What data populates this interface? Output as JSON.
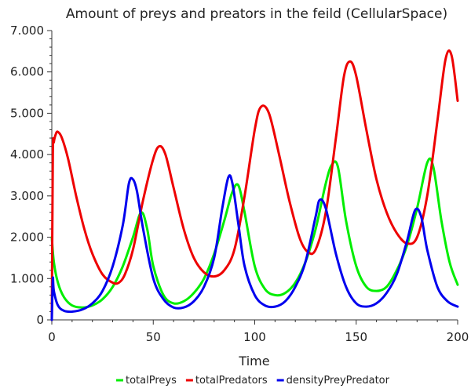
{
  "chart_data": {
    "type": "line",
    "title": "Amount of preys and preators in the feild (CellularSpace)",
    "xlabel": "Time",
    "ylabel": "",
    "xlim": [
      0,
      200
    ],
    "ylim": [
      0,
      7000
    ],
    "x_ticks": [
      0,
      50,
      100,
      150,
      200
    ],
    "x_tick_labels": [
      "0",
      "50",
      "100",
      "150",
      "200"
    ],
    "y_ticks": [
      0,
      1000,
      2000,
      3000,
      4000,
      5000,
      6000,
      7000
    ],
    "y_tick_labels": [
      "0",
      "1.000",
      "2.000",
      "3.000",
      "4.000",
      "5.000",
      "6.000",
      "7.000"
    ],
    "legend_position": "bottom",
    "series": [
      {
        "name": "totalPreys",
        "color": "#00ee00",
        "x": [
          0,
          1,
          3,
          6,
          10,
          15,
          20,
          25,
          30,
          35,
          40,
          44,
          47,
          50,
          55,
          60,
          65,
          70,
          75,
          80,
          85,
          89,
          92,
          95,
          100,
          105,
          110,
          115,
          120,
          125,
          130,
          135,
          138,
          141,
          145,
          150,
          155,
          160,
          165,
          170,
          175,
          180,
          185,
          188,
          192,
          196,
          200
        ],
        "y": [
          2000,
          1400,
          900,
          550,
          350,
          300,
          350,
          500,
          800,
          1300,
          2000,
          2600,
          2200,
          1300,
          600,
          400,
          450,
          650,
          1000,
          1600,
          2400,
          3100,
          3250,
          2600,
          1300,
          750,
          600,
          650,
          900,
          1400,
          2200,
          3300,
          3750,
          3700,
          2400,
          1300,
          800,
          700,
          800,
          1200,
          1800,
          2700,
          3800,
          3700,
          2400,
          1400,
          850
        ]
      },
      {
        "name": "totalPredators",
        "color": "#ee0000",
        "x": [
          0,
          0.5,
          1,
          2,
          3,
          5,
          8,
          12,
          16,
          20,
          25,
          30,
          33,
          36,
          40,
          45,
          50,
          53,
          56,
          60,
          65,
          70,
          75,
          80,
          85,
          90,
          95,
          100,
          103,
          107,
          112,
          117,
          122,
          126,
          130,
          135,
          140,
          144,
          147,
          150,
          155,
          160,
          165,
          170,
          175,
          180,
          185,
          190,
          194,
          197,
          200
        ],
        "y": [
          0,
          4000,
          4300,
          4500,
          4550,
          4400,
          3900,
          3000,
          2200,
          1600,
          1100,
          900,
          900,
          1100,
          1700,
          2900,
          3900,
          4200,
          4000,
          3200,
          2200,
          1500,
          1150,
          1050,
          1200,
          1700,
          3000,
          4600,
          5150,
          5000,
          4000,
          2900,
          2000,
          1650,
          1700,
          2600,
          4400,
          5900,
          6250,
          5900,
          4600,
          3400,
          2600,
          2100,
          1850,
          2000,
          3000,
          4800,
          6300,
          6400,
          5300
        ]
      },
      {
        "name": "densityPreyPredator",
        "color": "#0000ee",
        "x": [
          0,
          0.5,
          1,
          3,
          6,
          10,
          15,
          20,
          25,
          30,
          35,
          38,
          40,
          42,
          45,
          50,
          55,
          60,
          65,
          70,
          75,
          80,
          84,
          87,
          89,
          92,
          95,
          100,
          105,
          110,
          115,
          120,
          125,
          130,
          132,
          135,
          140,
          145,
          150,
          155,
          160,
          165,
          170,
          175,
          179,
          182,
          185,
          190,
          195,
          200
        ],
        "y": [
          0,
          1000,
          700,
          350,
          220,
          200,
          250,
          400,
          700,
          1300,
          2300,
          3300,
          3400,
          3100,
          2200,
          1000,
          500,
          300,
          300,
          450,
          800,
          1500,
          2700,
          3450,
          3300,
          2300,
          1300,
          600,
          350,
          320,
          450,
          800,
          1400,
          2500,
          2900,
          2700,
          1600,
          800,
          400,
          320,
          400,
          650,
          1100,
          1900,
          2650,
          2500,
          1700,
          800,
          450,
          320
        ]
      }
    ]
  }
}
